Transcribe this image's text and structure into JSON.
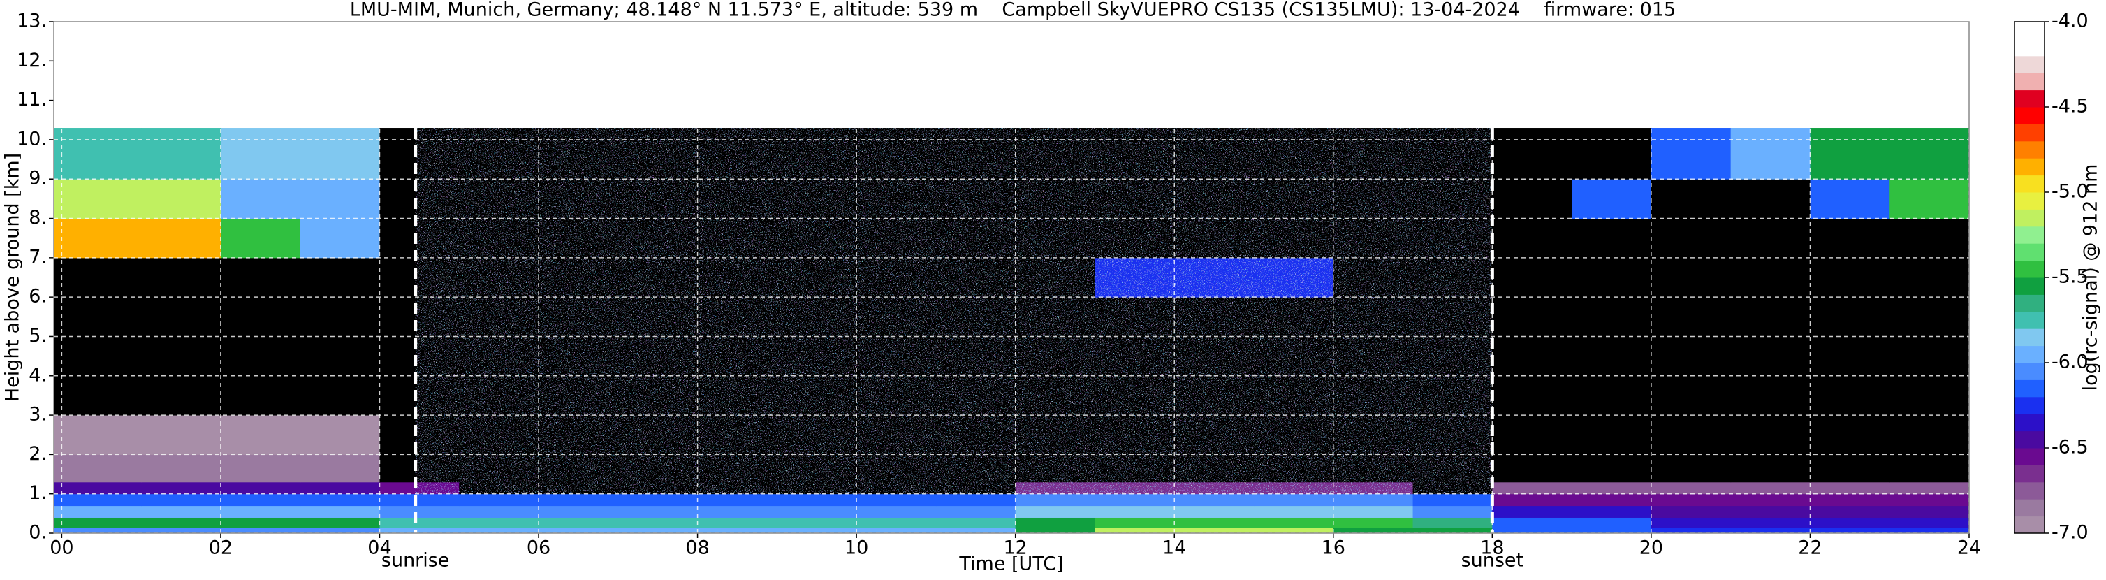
{
  "chart_data": {
    "type": "heatmap",
    "title": "LMU-MIM, Munich, Germany; 48.148° N 11.573° E, altitude: 539 m    Campbell SkyVUEPRO CS135 (CS135LMU): 13-04-2024    firmware: 015",
    "x_label": "Time [UTC]",
    "y_label": "Height above ground [km]",
    "xlim": [
      -0.1,
      24
    ],
    "ylim": [
      0,
      13
    ],
    "xticks": [
      {
        "value": 0,
        "label": "00"
      },
      {
        "value": 2,
        "label": "02"
      },
      {
        "value": 4,
        "label": "04"
      },
      {
        "value": 6,
        "label": "06"
      },
      {
        "value": 8,
        "label": "08"
      },
      {
        "value": 10,
        "label": "10"
      },
      {
        "value": 12,
        "label": "12"
      },
      {
        "value": 14,
        "label": "14"
      },
      {
        "value": 16,
        "label": "16"
      },
      {
        "value": 18,
        "label": "18"
      },
      {
        "value": 20,
        "label": "20"
      },
      {
        "value": 22,
        "label": "22"
      },
      {
        "value": 24,
        "label": "24"
      }
    ],
    "yticks": [
      {
        "value": 0,
        "label": "0."
      },
      {
        "value": 1,
        "label": "1."
      },
      {
        "value": 2,
        "label": "2."
      },
      {
        "value": 3,
        "label": "3."
      },
      {
        "value": 4,
        "label": "4."
      },
      {
        "value": 5,
        "label": "5."
      },
      {
        "value": 6,
        "label": "6."
      },
      {
        "value": 7,
        "label": "7."
      },
      {
        "value": 8,
        "label": "8."
      },
      {
        "value": 9,
        "label": "9."
      },
      {
        "value": 10,
        "label": "10."
      },
      {
        "value": 11,
        "label": "11."
      },
      {
        "value": 12,
        "label": "12."
      },
      {
        "value": 13,
        "label": "13."
      }
    ],
    "grid": true,
    "annotations": [
      {
        "x": 4.45,
        "text": "sunrise"
      },
      {
        "x": 18.0,
        "text": "sunset"
      }
    ],
    "x_bins": [
      -0.1,
      1,
      2,
      3,
      4,
      5,
      6,
      7,
      8,
      9,
      10,
      11,
      12,
      13,
      14,
      15,
      16,
      17,
      18,
      19,
      20,
      21,
      22,
      23,
      24
    ],
    "y_bins": [
      0,
      0.15,
      0.4,
      0.7,
      1.0,
      1.3,
      2.0,
      3.0,
      5.0,
      6.0,
      7.0,
      8.0,
      9.0,
      10.3
    ],
    "z": [
      [
        -6.1,
        -6.1,
        -6.1,
        -6.1,
        -6.0,
        -6.0,
        -6.0,
        -6.0,
        -6.0,
        -6.0,
        -6.0,
        -6.0,
        -5.6,
        -5.2,
        -5.2,
        -5.2,
        -5.6,
        -5.6,
        -6.2,
        -6.2,
        -6.3,
        -6.3,
        -6.3,
        -6.3
      ],
      [
        -5.6,
        -5.6,
        -5.6,
        -5.6,
        -5.8,
        -5.8,
        -5.8,
        -5.8,
        -5.8,
        -5.8,
        -5.8,
        -5.8,
        -5.6,
        -5.5,
        -5.5,
        -5.5,
        -5.5,
        -5.7,
        -6.2,
        -6.2,
        -6.4,
        -6.4,
        -6.4,
        -6.4
      ],
      [
        -6.0,
        -6.0,
        -6.0,
        -6.0,
        -6.1,
        -6.1,
        -6.1,
        -6.1,
        -6.1,
        -6.1,
        -6.1,
        -6.1,
        -5.9,
        -5.9,
        -5.9,
        -5.9,
        -5.9,
        -6.1,
        -6.4,
        -6.4,
        -6.5,
        -6.5,
        -6.5,
        -6.5
      ],
      [
        -6.2,
        -6.2,
        -6.2,
        -6.2,
        -6.2,
        -6.2,
        -6.2,
        -6.2,
        -6.2,
        -6.2,
        -6.2,
        -6.2,
        -6.1,
        -6.1,
        -6.1,
        -6.1,
        -6.1,
        -6.2,
        -6.6,
        -6.6,
        -6.6,
        -6.6,
        -6.6,
        -6.6
      ],
      [
        -6.5,
        -6.5,
        -6.5,
        -6.5,
        -6.6,
        -7.5,
        -7.5,
        -7.5,
        -7.5,
        -7.5,
        -7.5,
        -7.5,
        -6.7,
        -6.7,
        -6.7,
        -6.7,
        -6.7,
        -7.5,
        -6.8,
        -6.8,
        -6.8,
        -6.8,
        -6.8,
        -6.8
      ],
      [
        -6.9,
        -6.9,
        -6.9,
        -6.9,
        -7.5,
        -7.5,
        -7.5,
        -7.5,
        -7.5,
        -7.5,
        -7.5,
        -7.5,
        -7.5,
        -7.5,
        -7.5,
        -7.5,
        -7.5,
        -7.5,
        -7.5,
        -7.5,
        -7.5,
        -7.5,
        -7.5,
        -7.5
      ],
      [
        -7.0,
        -7.0,
        -7.0,
        -7.0,
        -7.5,
        -7.5,
        -7.5,
        -7.5,
        -7.5,
        -7.5,
        -7.5,
        -7.5,
        -7.5,
        -7.5,
        -7.5,
        -7.5,
        -7.5,
        -7.5,
        -7.5,
        -7.5,
        -7.5,
        -7.5,
        -7.5,
        -7.5
      ],
      [
        -7.5,
        -7.5,
        -7.5,
        -7.5,
        -7.5,
        -7.5,
        -7.5,
        -7.5,
        -7.5,
        -7.5,
        -7.5,
        -7.5,
        -7.5,
        -7.5,
        -7.5,
        -7.5,
        -7.5,
        -7.5,
        -7.5,
        -7.5,
        -7.5,
        -7.5,
        -7.5,
        -7.5
      ],
      [
        -7.5,
        -7.5,
        -7.5,
        -7.5,
        -7.5,
        -7.5,
        -7.5,
        -7.5,
        -7.5,
        -7.5,
        -7.5,
        -7.5,
        -7.5,
        -7.5,
        -7.5,
        -7.5,
        -7.5,
        -7.5,
        -7.5,
        -7.5,
        -7.5,
        -7.5,
        -7.5,
        -7.5
      ],
      [
        -7.5,
        -7.5,
        -7.5,
        -7.5,
        -7.5,
        -7.5,
        -7.5,
        -7.5,
        -7.5,
        -7.5,
        -7.5,
        -7.5,
        -7.5,
        -6.3,
        -6.3,
        -6.3,
        -7.5,
        -7.5,
        -7.5,
        -7.5,
        -7.5,
        -7.5,
        -7.5,
        -7.5
      ],
      [
        -4.9,
        -4.9,
        -5.5,
        -6.0,
        -7.5,
        -7.5,
        -7.5,
        -7.5,
        -7.5,
        -7.5,
        -7.5,
        -7.5,
        -7.5,
        -7.5,
        -7.5,
        -7.5,
        -7.5,
        -7.5,
        -7.5,
        -7.5,
        -7.5,
        -7.5,
        -7.5,
        -7.5
      ],
      [
        -5.2,
        -5.2,
        -6.0,
        -6.0,
        -7.5,
        -7.5,
        -7.5,
        -7.5,
        -7.5,
        -7.5,
        -7.5,
        -7.5,
        -7.5,
        -7.5,
        -7.5,
        -7.5,
        -7.5,
        -7.5,
        -7.5,
        -6.2,
        -7.5,
        -7.5,
        -6.2,
        -5.5
      ],
      [
        -5.8,
        -5.8,
        -5.9,
        -5.9,
        -7.5,
        -7.5,
        -7.5,
        -7.5,
        -7.5,
        -7.5,
        -7.5,
        -7.5,
        -7.5,
        -7.5,
        -7.5,
        -7.5,
        -7.5,
        -7.5,
        -7.5,
        -7.5,
        -6.2,
        -6.0,
        -5.6,
        -5.6
      ]
    ],
    "colorbar": {
      "label": "log(rc-signal) @ 912 nm",
      "lim": [
        -7,
        -4
      ],
      "ticks": [
        {
          "value": -4,
          "label": "-4.0"
        },
        {
          "value": -4.5,
          "label": "-4.5"
        },
        {
          "value": -5,
          "label": "-5.0"
        },
        {
          "value": -5.5,
          "label": "-5.5"
        },
        {
          "value": -6,
          "label": "-6.0"
        },
        {
          "value": -6.5,
          "label": "-6.5"
        },
        {
          "value": -7,
          "label": "-7.0"
        }
      ],
      "colors": [
        "#a88ea8",
        "#9a7aa0",
        "#8c5a98",
        "#7a2f8f",
        "#6a0a90",
        "#4a0aa0",
        "#2c10c8",
        "#1a30f0",
        "#2060ff",
        "#4a8cff",
        "#6ab0ff",
        "#80c8f0",
        "#40c0b0",
        "#30b080",
        "#10a040",
        "#30c040",
        "#60e070",
        "#90f090",
        "#c0f060",
        "#e8f040",
        "#f8e020",
        "#ffb000",
        "#ff8000",
        "#ff4000",
        "#ff0000",
        "#e00020",
        "#f0b0b0",
        "#eed8d8",
        "#ffffff",
        "#ffffff"
      ],
      "under_color": "#000000"
    }
  }
}
